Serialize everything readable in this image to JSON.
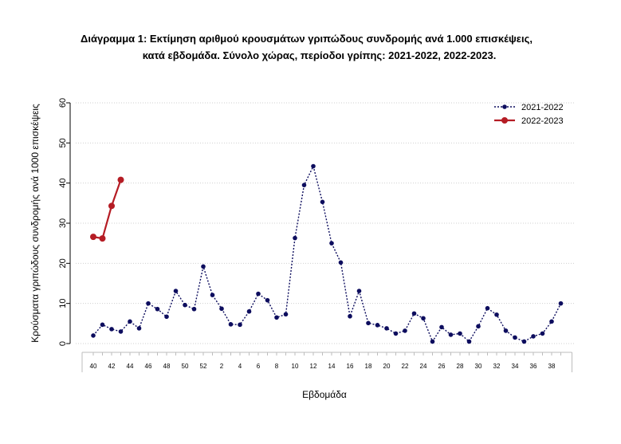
{
  "title": {
    "line1": "Διάγραμμα 1: Εκτίμηση αριθμού κρουσμάτων γριπώδους συνδρομής ανά 1.000 επισκέψεις,",
    "line2": "κατά εβδομάδα. Σύνολο χώρας, περίοδοι γρίπης:  2021-2022, 2022-2023."
  },
  "chart_data": {
    "type": "line",
    "xlabel": "Εβδομάδα",
    "ylabel": "Κρούσματα γριπώδους συνδρομής ανά 1000 επισκέψεις",
    "ylim": [
      0,
      60
    ],
    "yticks": [
      0,
      10,
      20,
      30,
      40,
      50,
      60
    ],
    "grid": "horizontal-dotted",
    "legend_position": "top-right",
    "weeks": [
      40,
      41,
      42,
      43,
      44,
      45,
      46,
      47,
      48,
      49,
      50,
      51,
      52,
      1,
      2,
      3,
      4,
      5,
      6,
      7,
      8,
      9,
      10,
      11,
      12,
      13,
      14,
      15,
      16,
      17,
      18,
      19,
      20,
      21,
      22,
      23,
      24,
      25,
      26,
      27,
      28,
      29,
      30,
      31,
      32,
      33,
      34,
      35,
      36,
      37,
      38,
      39
    ],
    "tick_labels": [
      "40",
      "42",
      "44",
      "46",
      "48",
      "50",
      "52",
      "2",
      "4",
      "6",
      "8",
      "10",
      "12",
      "14",
      "16",
      "18",
      "20",
      "22",
      "24",
      "26",
      "28",
      "30",
      "32",
      "34",
      "36",
      "38"
    ],
    "series": [
      {
        "name": "2021-2022",
        "color": "#0d0d5e",
        "style": "dotted",
        "values": [
          2.0,
          4.7,
          3.6,
          3.0,
          5.5,
          3.8,
          10.0,
          8.6,
          6.7,
          13.1,
          9.6,
          8.6,
          19.2,
          12.1,
          8.7,
          4.8,
          4.7,
          8.0,
          12.4,
          10.8,
          6.5,
          7.3,
          26.3,
          39.5,
          44.2,
          35.3,
          25.0,
          20.2,
          6.8,
          13.1,
          5.1,
          4.6,
          3.8,
          2.5,
          3.2,
          7.5,
          6.3,
          0.5,
          4.1,
          2.2,
          2.5,
          0.5,
          4.3,
          8.8,
          7.2,
          3.2,
          1.5,
          0.5,
          1.8,
          2.5,
          5.5,
          10.0
        ]
      },
      {
        "name": "2022-2023",
        "color": "#b51c24",
        "style": "solid",
        "values": [
          26.6,
          26.2,
          34.3,
          40.8
        ]
      }
    ]
  }
}
